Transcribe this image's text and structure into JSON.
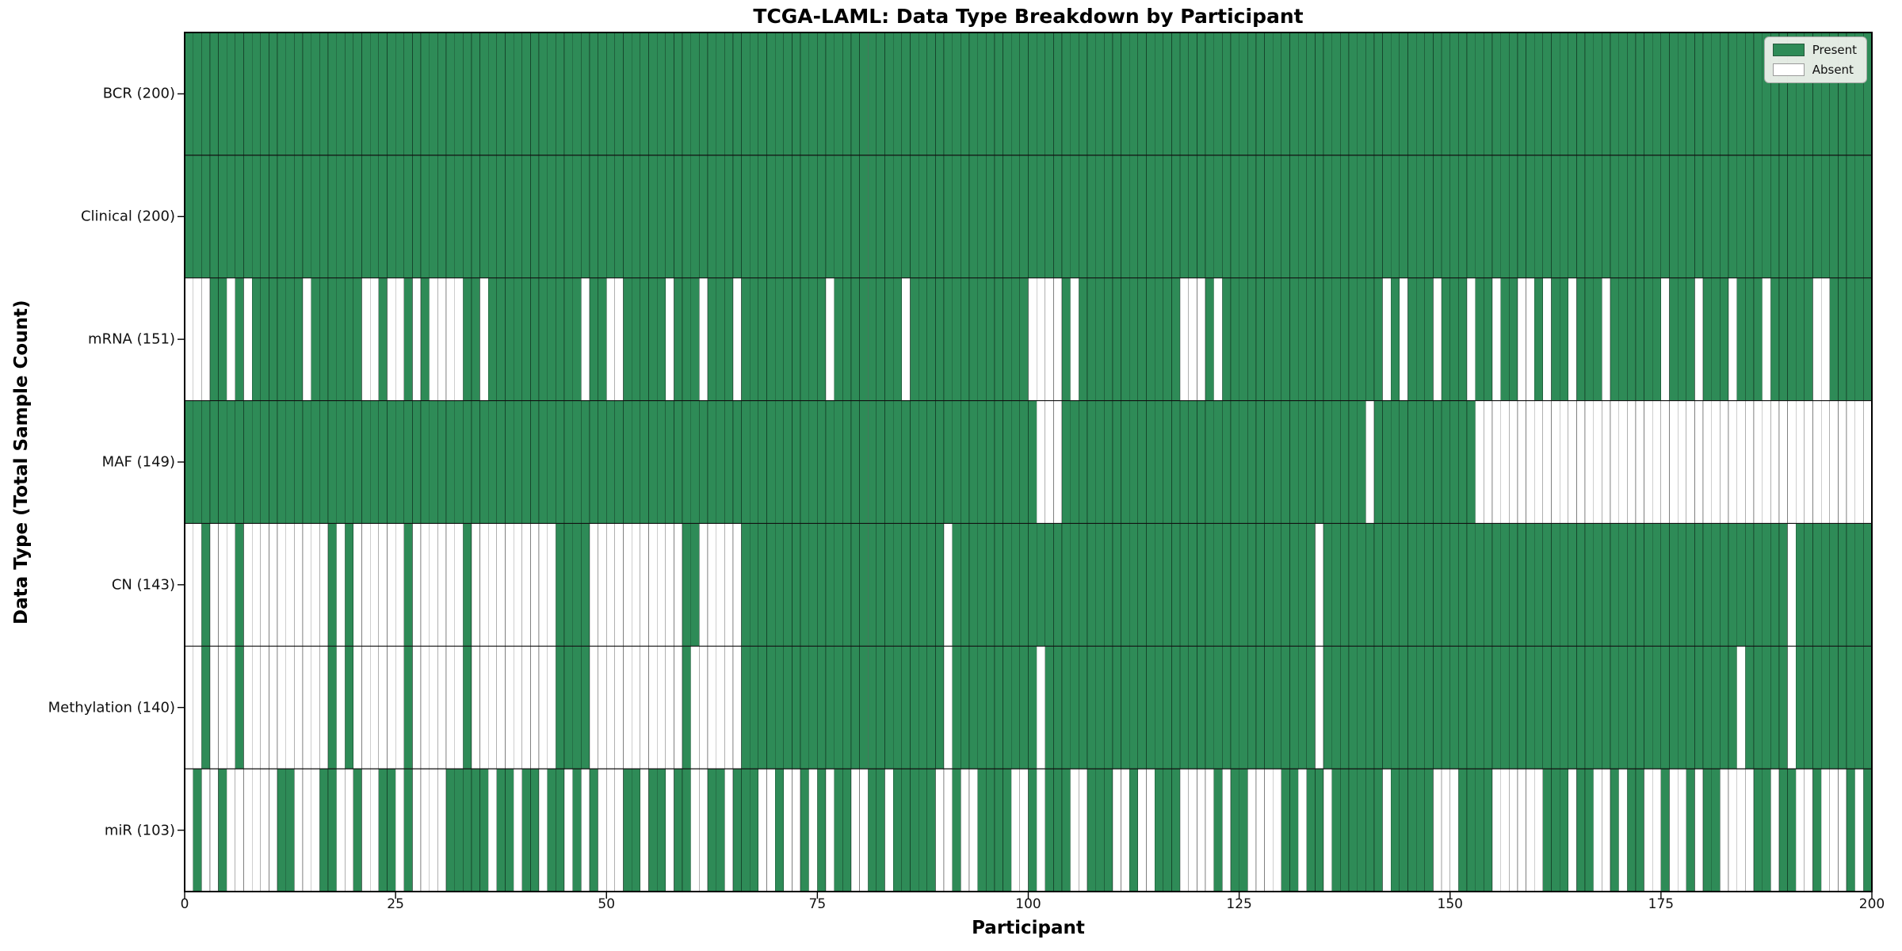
{
  "chart_data": {
    "type": "heatmap",
    "title": "TCGA-LAML: Data Type Breakdown by Participant",
    "xlabel": "Participant",
    "ylabel": "Data Type (Total Sample Count)",
    "n_participants": 200,
    "x_range": [
      0,
      200
    ],
    "x_ticks": [
      0,
      25,
      50,
      75,
      100,
      125,
      150,
      175,
      200
    ],
    "legend": {
      "present_label": "Present",
      "absent_label": "Absent",
      "position": "upper right"
    },
    "colors": {
      "present": "#2e8b57",
      "absent": "#ffffff",
      "cell_edge": "rgba(0,0,0,0.38)",
      "row_separator": "#111111",
      "plot_border": "#000000",
      "legend_bg": "#edf0eb"
    },
    "rows": [
      {
        "name": "BCR",
        "label": "BCR (200)",
        "present_count": 200,
        "absent": []
      },
      {
        "name": "Clinical",
        "label": "Clinical (200)",
        "present_count": 200,
        "absent": []
      },
      {
        "name": "mRNA",
        "label": "mRNA (151)",
        "present_count": 151,
        "absent": [
          0,
          1,
          2,
          5,
          7,
          14,
          21,
          22,
          24,
          25,
          27,
          29,
          30,
          31,
          32,
          35,
          47,
          50,
          51,
          57,
          61,
          65,
          76,
          85,
          100,
          101,
          102,
          103,
          105,
          118,
          119,
          120,
          122,
          142,
          144,
          148,
          152,
          155,
          158,
          159,
          161,
          164,
          168,
          175,
          179,
          183,
          187,
          193,
          194
        ]
      },
      {
        "name": "MAF",
        "label": "MAF (149)",
        "present_count": 149,
        "absent": [
          101,
          102,
          103,
          140,
          153,
          154,
          155,
          156,
          157,
          158,
          159,
          160,
          161,
          162,
          163,
          164,
          165,
          166,
          167,
          168,
          169,
          170,
          171,
          172,
          173,
          174,
          175,
          176,
          177,
          178,
          179,
          180,
          181,
          182,
          183,
          184,
          185,
          186,
          187,
          188,
          189,
          190,
          191,
          192,
          193,
          194,
          195,
          196,
          197,
          198,
          199
        ]
      },
      {
        "name": "CN",
        "label": "CN (143)",
        "present_count": 143,
        "absent": [
          0,
          1,
          3,
          4,
          5,
          7,
          8,
          9,
          10,
          11,
          12,
          13,
          14,
          15,
          16,
          18,
          20,
          21,
          22,
          23,
          24,
          25,
          27,
          28,
          29,
          30,
          31,
          32,
          34,
          35,
          36,
          37,
          38,
          39,
          40,
          41,
          42,
          43,
          48,
          49,
          50,
          51,
          52,
          53,
          54,
          55,
          56,
          57,
          58,
          61,
          62,
          63,
          64,
          65,
          90,
          134,
          190
        ]
      },
      {
        "name": "Methylation",
        "label": "Methylation (140)",
        "present_count": 140,
        "absent": [
          0,
          1,
          3,
          4,
          5,
          7,
          8,
          9,
          10,
          11,
          12,
          13,
          14,
          15,
          16,
          18,
          20,
          21,
          22,
          23,
          24,
          25,
          27,
          28,
          29,
          30,
          31,
          32,
          34,
          35,
          36,
          37,
          38,
          39,
          40,
          41,
          42,
          43,
          48,
          49,
          50,
          51,
          52,
          53,
          54,
          55,
          56,
          57,
          58,
          60,
          61,
          62,
          63,
          64,
          65,
          90,
          101,
          134,
          184,
          190
        ]
      },
      {
        "name": "miR",
        "label": "miR (103)",
        "present_count": 103,
        "absent": [
          0,
          2,
          3,
          5,
          6,
          7,
          8,
          9,
          10,
          13,
          14,
          15,
          18,
          19,
          21,
          22,
          25,
          27,
          28,
          29,
          30,
          36,
          39,
          42,
          45,
          47,
          49,
          50,
          51,
          54,
          57,
          60,
          61,
          64,
          68,
          69,
          71,
          72,
          74,
          76,
          79,
          80,
          83,
          89,
          90,
          92,
          93,
          98,
          99,
          101,
          105,
          106,
          110,
          111,
          113,
          114,
          118,
          119,
          120,
          121,
          123,
          126,
          127,
          128,
          129,
          132,
          135,
          142,
          148,
          149,
          150,
          155,
          156,
          157,
          158,
          159,
          160,
          164,
          167,
          168,
          170,
          173,
          174,
          176,
          177,
          179,
          182,
          183,
          184,
          185,
          188,
          191,
          192,
          194,
          195,
          196,
          198
        ]
      }
    ]
  }
}
